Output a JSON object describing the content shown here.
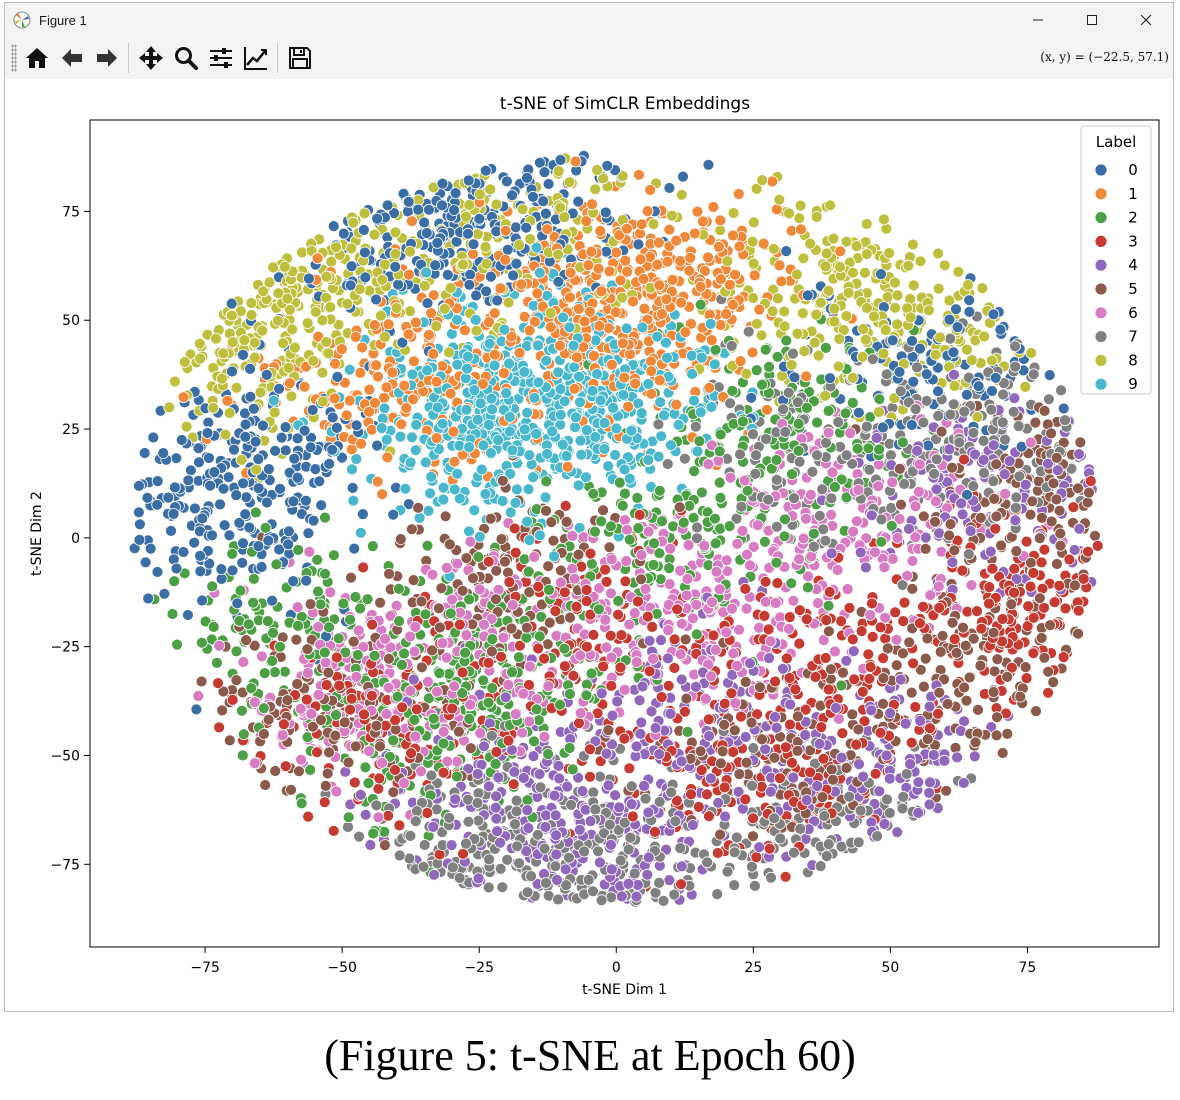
{
  "window": {
    "title": "Figure 1",
    "controls": [
      "minimize",
      "maximize",
      "close"
    ]
  },
  "toolbar": {
    "buttons": [
      {
        "name": "home-button",
        "icon": "home-icon"
      },
      {
        "name": "back-button",
        "icon": "arrow-left-icon"
      },
      {
        "name": "forward-button",
        "icon": "arrow-right-icon"
      },
      {
        "name": "pan-button",
        "icon": "move-icon"
      },
      {
        "name": "zoom-button",
        "icon": "magnifier-icon"
      },
      {
        "name": "configure-subplots-button",
        "icon": "sliders-icon"
      },
      {
        "name": "edit-axis-button",
        "icon": "line-chart-icon"
      },
      {
        "name": "save-button",
        "icon": "floppy-disk-icon"
      }
    ],
    "coords": "(x, y) = (−22.5, 57.1)"
  },
  "chart_data": {
    "type": "scatter",
    "title": "t-SNE of SimCLR Embeddings",
    "xlabel": "t-SNE Dim 1",
    "ylabel": "t-SNE Dim 2",
    "xlim": [
      -96,
      99
    ],
    "ylim": [
      -94,
      96
    ],
    "xticks": [
      -75,
      -50,
      -25,
      0,
      25,
      50,
      75
    ],
    "yticks": [
      -75,
      -50,
      -25,
      0,
      25,
      50,
      75
    ],
    "xtick_labels": [
      "−75",
      "−50",
      "−25",
      "0",
      "25",
      "50",
      "75"
    ],
    "ytick_labels": [
      "−75",
      "−50",
      "−25",
      "0",
      "25",
      "50",
      "75"
    ],
    "grid": false,
    "legend": {
      "title": "Label",
      "placement": "top-right",
      "entries": [
        "0",
        "1",
        "2",
        "3",
        "4",
        "5",
        "6",
        "7",
        "8",
        "9"
      ]
    },
    "colors": [
      "#3a6ea5",
      "#f0883a",
      "#4c9f44",
      "#c63a32",
      "#9067ba",
      "#8c5a4a",
      "#d77cc2",
      "#808080",
      "#bfbf3e",
      "#4ab8cc"
    ],
    "point_count_per_class": 700,
    "clusters": [
      {
        "label": "0",
        "centers": [
          [
            -72,
            5
          ],
          [
            -65,
            20
          ],
          [
            -40,
            70
          ],
          [
            -20,
            78
          ],
          [
            55,
            40
          ]
        ]
      },
      {
        "label": "1",
        "centers": [
          [
            -40,
            35
          ],
          [
            0,
            45
          ],
          [
            10,
            60
          ],
          [
            -10,
            55
          ]
        ]
      },
      {
        "label": "2",
        "centers": [
          [
            -60,
            -20
          ],
          [
            -20,
            -30
          ],
          [
            10,
            0
          ],
          [
            30,
            25
          ],
          [
            -35,
            -45
          ]
        ]
      },
      {
        "label": "3",
        "centers": [
          [
            -40,
            -45
          ],
          [
            -10,
            -20
          ],
          [
            40,
            -30
          ],
          [
            75,
            -15
          ],
          [
            20,
            -55
          ]
        ]
      },
      {
        "label": "4",
        "centers": [
          [
            0,
            -70
          ],
          [
            20,
            -40
          ],
          [
            -20,
            -55
          ],
          [
            50,
            -55
          ],
          [
            70,
            10
          ]
        ]
      },
      {
        "label": "5",
        "centers": [
          [
            -20,
            -10
          ],
          [
            30,
            -50
          ],
          [
            70,
            -30
          ],
          [
            80,
            10
          ],
          [
            -50,
            -40
          ]
        ]
      },
      {
        "label": "6",
        "centers": [
          [
            45,
            5
          ],
          [
            -45,
            -35
          ],
          [
            15,
            -15
          ],
          [
            -20,
            -25
          ]
        ]
      },
      {
        "label": "7",
        "centers": [
          [
            -25,
            -72
          ],
          [
            -5,
            -70
          ],
          [
            65,
            25
          ],
          [
            35,
            20
          ],
          [
            40,
            -70
          ]
        ]
      },
      {
        "label": "8",
        "centers": [
          [
            -72,
            45
          ],
          [
            -55,
            60
          ],
          [
            -20,
            70
          ],
          [
            40,
            60
          ],
          [
            55,
            50
          ]
        ]
      },
      {
        "label": "9",
        "centers": [
          [
            -25,
            25
          ],
          [
            -15,
            40
          ],
          [
            -5,
            30
          ]
        ]
      }
    ]
  },
  "caption": "(Figure 5: t-SNE at Epoch 60)"
}
